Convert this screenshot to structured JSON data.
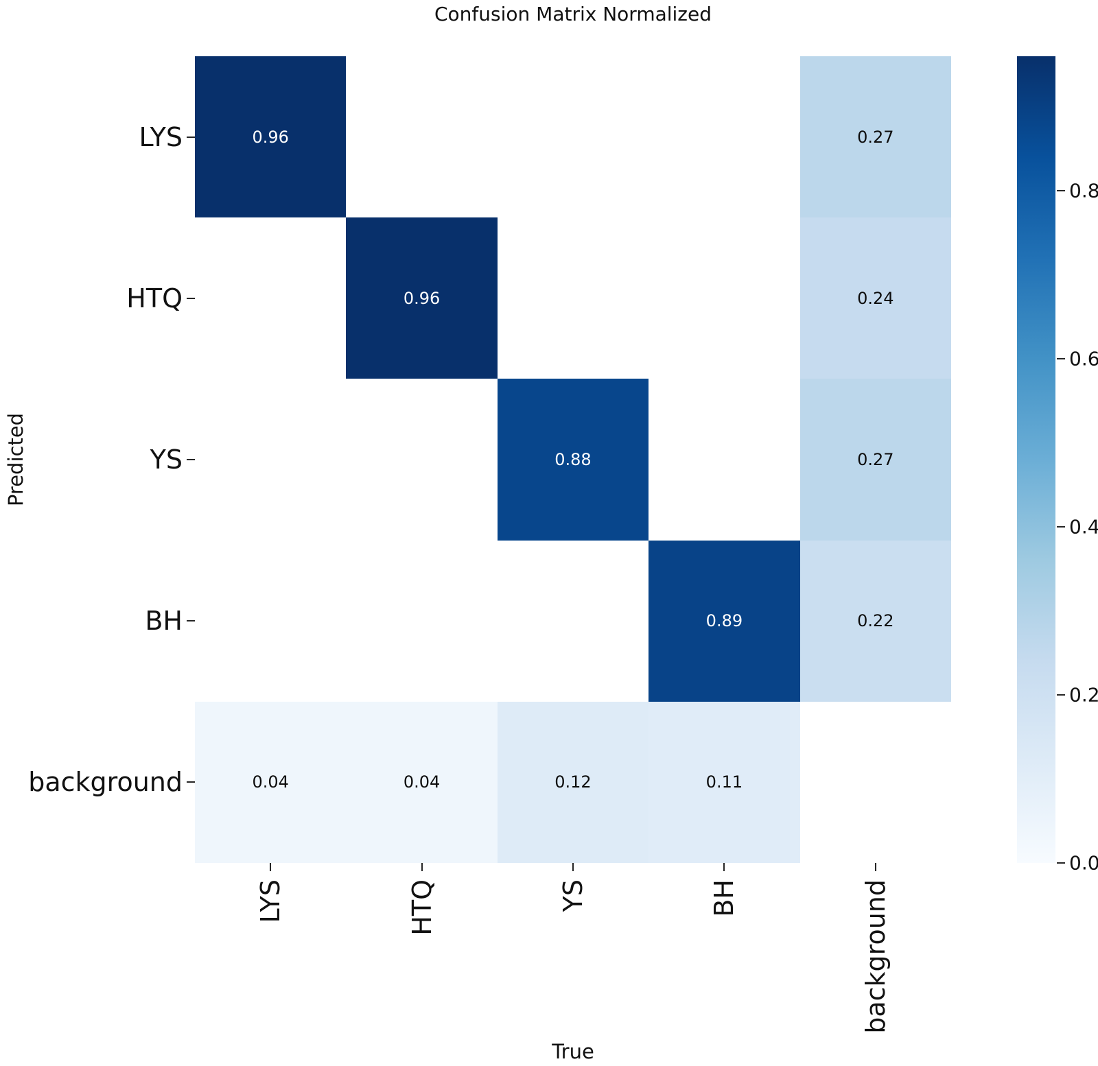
{
  "chart_data": {
    "type": "heatmap",
    "title": "Confusion Matrix Normalized",
    "xlabel": "True",
    "ylabel": "Predicted",
    "x_categories": [
      "LYS",
      "HTQ",
      "YS",
      "BH",
      "background"
    ],
    "y_categories": [
      "LYS",
      "HTQ",
      "YS",
      "BH",
      "background"
    ],
    "values": [
      [
        0.96,
        null,
        null,
        null,
        0.27
      ],
      [
        null,
        0.96,
        null,
        null,
        0.24
      ],
      [
        null,
        null,
        0.88,
        null,
        0.27
      ],
      [
        null,
        null,
        null,
        0.89,
        0.22
      ],
      [
        0.04,
        0.04,
        0.12,
        0.11,
        null
      ]
    ],
    "cell_labels": [
      [
        "0.96",
        "",
        "",
        "",
        "0.27"
      ],
      [
        "",
        "0.96",
        "",
        "",
        "0.24"
      ],
      [
        "",
        "",
        "0.88",
        "",
        "0.27"
      ],
      [
        "",
        "",
        "",
        "0.89",
        "0.22"
      ],
      [
        "0.04",
        "0.04",
        "0.12",
        "0.11",
        ""
      ]
    ],
    "cell_colors": [
      [
        "#08306b",
        "#ffffff",
        "#ffffff",
        "#ffffff",
        "#bcd7eb"
      ],
      [
        "#ffffff",
        "#08306b",
        "#ffffff",
        "#ffffff",
        "#c6dbef"
      ],
      [
        "#ffffff",
        "#ffffff",
        "#08468c",
        "#ffffff",
        "#bcd7eb"
      ],
      [
        "#ffffff",
        "#ffffff",
        "#ffffff",
        "#084388",
        "#cadef0"
      ],
      [
        "#eff6fc",
        "#eff6fc",
        "#deebf7",
        "#e0ecf8",
        "#ffffff"
      ]
    ],
    "cell_text_colors": [
      [
        "#ffffff",
        "",
        "",
        "",
        "#0d0d0d"
      ],
      [
        "",
        "#ffffff",
        "",
        "",
        "#0d0d0d"
      ],
      [
        "",
        "",
        "#ffffff",
        "",
        "#0d0d0d"
      ],
      [
        "",
        "",
        "",
        "#ffffff",
        "#0d0d0d"
      ],
      [
        "#0d0d0d",
        "#0d0d0d",
        "#0d0d0d",
        "#0d0d0d",
        ""
      ]
    ],
    "colormap": "Blues",
    "vmin": 0.0,
    "vmax": 0.96,
    "grid": "off",
    "legend_position": "right-colorbar",
    "colorbar": {
      "ticks": [
        {
          "value": 0.8,
          "label": "0.8"
        },
        {
          "value": 0.6,
          "label": "0.6"
        },
        {
          "value": 0.4,
          "label": "0.4"
        },
        {
          "value": 0.2,
          "label": "0.2"
        },
        {
          "value": 0.0,
          "label": "0.0"
        }
      ],
      "gradient_top_to_bottom": [
        "#08306b",
        "#08519c",
        "#2171b5",
        "#4292c6",
        "#6baed6",
        "#9ecae1",
        "#c6dbef",
        "#deebf7",
        "#f7fbff"
      ]
    }
  }
}
